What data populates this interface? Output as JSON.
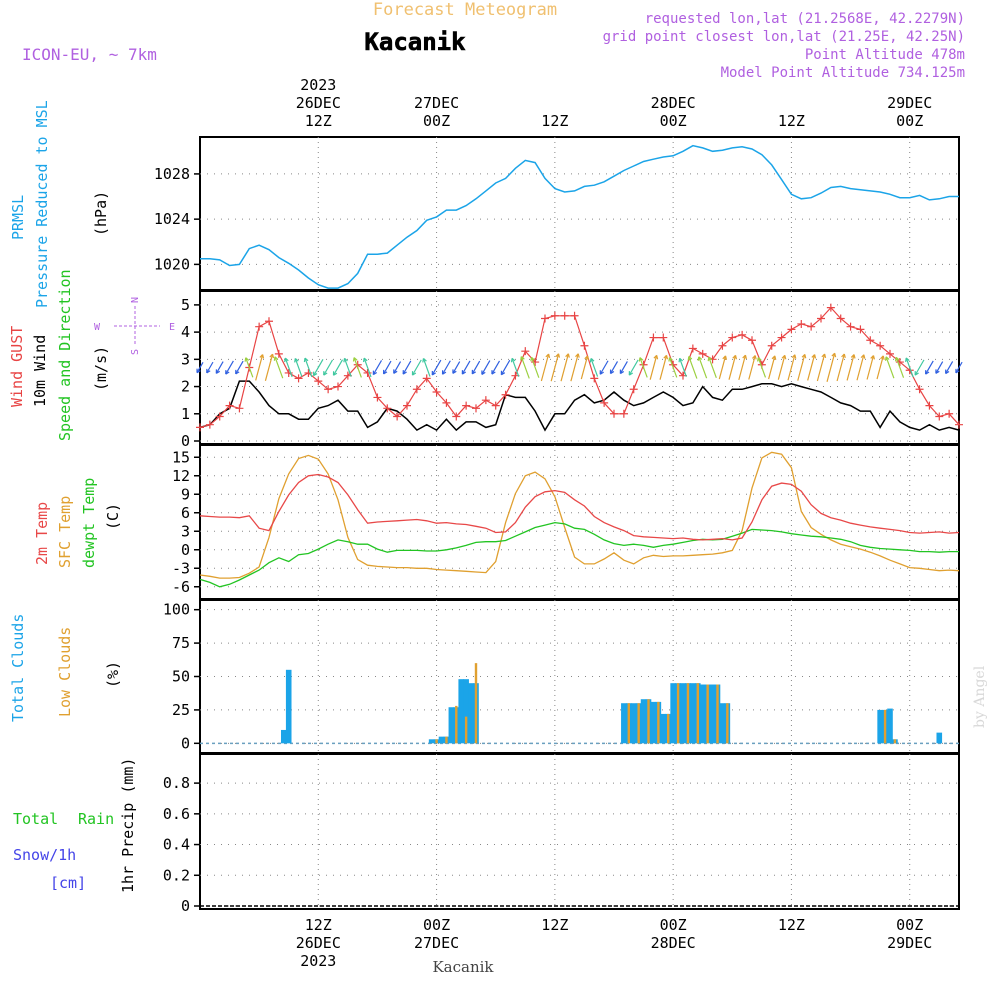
{
  "header": {
    "subtitle": "Forecast Meteogram",
    "station": "Kacanik",
    "model": "ICON-EU, ~ 7km",
    "requested": "requested lon,lat (21.2568E, 42.2279N)",
    "gridpoint": "grid point closest lon,lat (21.25E, 42.25N)",
    "altitude": "Point Altitude 478m",
    "model_altitude": "Model Point Altitude 734.125m",
    "footer_station": "Kacanik",
    "watermark": "by Angel"
  },
  "time_axis": {
    "year": "2023",
    "ticks": [
      {
        "time": "12Z",
        "date": "26DEC",
        "year": "2023",
        "hour": 12
      },
      {
        "time": "00Z",
        "date": "27DEC",
        "year": "",
        "hour": 24
      },
      {
        "time": "12Z",
        "date": "",
        "year": "",
        "hour": 36
      },
      {
        "time": "00Z",
        "date": "28DEC",
        "year": "",
        "hour": 48
      },
      {
        "time": "12Z",
        "date": "",
        "year": "",
        "hour": 60
      },
      {
        "time": "00Z",
        "date": "29DEC",
        "year": "",
        "hour": 72
      }
    ]
  },
  "panels": {
    "pressure": {
      "label1": "PRMSL",
      "label2": "Pressure Reduced to MSL",
      "unit": "(hPa)"
    },
    "wind": {
      "label_gust": "Wind GUST",
      "label_wind": "10m Wind",
      "label_speed": "Speed and Direction",
      "unit": "(m/s)",
      "compass_n": "N",
      "compass_s": "S",
      "compass_w": "W",
      "compass_e": "E"
    },
    "temp": {
      "label_t2m": "2m Temp",
      "label_sfc": "SFC Temp",
      "label_dew": "dewpt Temp",
      "unit": "(C)"
    },
    "clouds": {
      "label_total": "Total Clouds",
      "label_low": "Low Clouds",
      "unit": "(%)"
    },
    "precip": {
      "label_total": "Total",
      "label_rain": "Rain",
      "label_snow": "Snow/1h",
      "label_cm": "[cm]",
      "unit": "1hr Precip (mm)"
    }
  },
  "colors": {
    "pressure": "#1ba4e8",
    "gust": "#e84444",
    "wind": "#000000",
    "t2m": "#e84848",
    "sfc": "#e0a030",
    "dew": "#22c422",
    "total_clouds": "#1ba4e8",
    "low_clouds": "#e0a030",
    "purple": "#b060e0",
    "title_orange": "#f0c070",
    "rain_green": "#22c422",
    "snow_blue": "#4444e8"
  },
  "chart_data": [
    {
      "type": "line",
      "name": "pressure",
      "x_hours": [
        0,
        1,
        2,
        3,
        4,
        5,
        6,
        7,
        8,
        9,
        10,
        11,
        12,
        13,
        14,
        15,
        16,
        17,
        18,
        19,
        20,
        21,
        22,
        23,
        24,
        25,
        26,
        27,
        28,
        29,
        30,
        31,
        32,
        33,
        34,
        35,
        36,
        37,
        38,
        39,
        40,
        41,
        42,
        43,
        44,
        45,
        46,
        47,
        48,
        49,
        50,
        51,
        52,
        53,
        54,
        55,
        56,
        57,
        58,
        59,
        60,
        61,
        62,
        63,
        64,
        65,
        66,
        67,
        68,
        69,
        70,
        71,
        72,
        73,
        74,
        75,
        76,
        77
      ],
      "values": [
        1020.5,
        1020.5,
        1020.4,
        1019.9,
        1020,
        1021.4,
        1021.7,
        1021.3,
        1020.6,
        1020.1,
        1019.5,
        1018.8,
        1018.2,
        1017.9,
        1017.9,
        1018.3,
        1019.2,
        1020.9,
        1020.9,
        1021,
        1021.7,
        1022.4,
        1023,
        1023.9,
        1024.2,
        1024.8,
        1024.8,
        1025.2,
        1025.8,
        1026.5,
        1027.2,
        1027.6,
        1028.5,
        1029.2,
        1029,
        1027.6,
        1026.7,
        1026.4,
        1026.5,
        1026.9,
        1027,
        1027.3,
        1027.8,
        1028.3,
        1028.7,
        1029.1,
        1029.3,
        1029.5,
        1029.6,
        1030,
        1030.5,
        1030.3,
        1030,
        1030.1,
        1030.3,
        1030.4,
        1030.2,
        1029.7,
        1028.8,
        1027.5,
        1026.2,
        1025.8,
        1025.9,
        1026.3,
        1026.8,
        1026.9,
        1026.7,
        1026.6,
        1026.5,
        1026.4,
        1026.2,
        1025.9,
        1025.9,
        1026.1,
        1025.7,
        1025.8,
        1026,
        1026
      ],
      "ylim": [
        1018,
        1031
      ],
      "yticks": [
        1020,
        1024,
        1028
      ]
    },
    {
      "type": "line",
      "name": "wind",
      "x_hours": [
        0,
        1,
        2,
        3,
        4,
        5,
        6,
        7,
        8,
        9,
        10,
        11,
        12,
        13,
        14,
        15,
        16,
        17,
        18,
        19,
        20,
        21,
        22,
        23,
        24,
        25,
        26,
        27,
        28,
        29,
        30,
        31,
        32,
        33,
        34,
        35,
        36,
        37,
        38,
        39,
        40,
        41,
        42,
        43,
        44,
        45,
        46,
        47,
        48,
        49,
        50,
        51,
        52,
        53,
        54,
        55,
        56,
        57,
        58,
        59,
        60,
        61,
        62,
        63,
        64,
        65,
        66,
        67,
        68,
        69,
        70,
        71,
        72,
        73,
        74,
        75,
        76,
        77
      ],
      "gust": [
        0.5,
        0.6,
        0.9,
        1.3,
        1.2,
        2.7,
        4.2,
        4.4,
        3.2,
        2.5,
        2.3,
        2.5,
        2.2,
        1.9,
        2,
        2.4,
        2.8,
        2.5,
        1.6,
        1.2,
        0.9,
        1.3,
        1.9,
        2.3,
        1.8,
        1.4,
        0.9,
        1.3,
        1.2,
        1.5,
        1.3,
        1.7,
        2.4,
        3.3,
        2.9,
        4.5,
        4.6,
        4.6,
        4.6,
        3.5,
        2.3,
        1.4,
        1,
        1,
        1.9,
        2.8,
        3.8,
        3.8,
        2.8,
        2.4,
        3.4,
        3.2,
        3,
        3.5,
        3.8,
        3.9,
        3.7,
        2.8,
        3.5,
        3.8,
        4.1,
        4.3,
        4.2,
        4.5,
        4.9,
        4.5,
        4.2,
        4.1,
        3.7,
        3.5,
        3.2,
        2.9,
        2.6,
        1.9,
        1.3,
        0.9,
        1,
        0.6
      ],
      "wind": [
        0.5,
        0.6,
        1,
        1.2,
        2.2,
        2.2,
        1.8,
        1.3,
        1,
        1,
        0.8,
        0.8,
        1.2,
        1.3,
        1.5,
        1.1,
        1.1,
        0.5,
        0.7,
        1.2,
        1.1,
        0.8,
        0.4,
        0.6,
        0.4,
        0.8,
        0.4,
        0.7,
        0.7,
        0.5,
        0.6,
        1.7,
        1.6,
        1.6,
        1.1,
        0.4,
        1,
        1,
        1.5,
        1.7,
        1.4,
        1.5,
        1.8,
        1.5,
        1.3,
        1.4,
        1.6,
        1.8,
        1.6,
        1.3,
        1.4,
        2,
        1.6,
        1.5,
        1.9,
        1.9,
        2,
        2.1,
        2.1,
        2,
        2.1,
        2,
        1.9,
        1.8,
        1.6,
        1.4,
        1.3,
        1.1,
        1.1,
        0.5,
        1.1,
        0.7,
        0.5,
        0.4,
        0.6,
        0.4,
        0.5,
        0.4
      ],
      "ylim": [
        0,
        5.4
      ],
      "yticks": [
        0,
        1,
        2,
        3,
        4,
        5
      ]
    },
    {
      "type": "line",
      "name": "temperature",
      "x_hours": [
        0,
        1,
        2,
        3,
        4,
        5,
        6,
        7,
        8,
        9,
        10,
        11,
        12,
        13,
        14,
        15,
        16,
        17,
        18,
        19,
        20,
        21,
        22,
        23,
        24,
        25,
        26,
        27,
        28,
        29,
        30,
        31,
        32,
        33,
        34,
        35,
        36,
        37,
        38,
        39,
        40,
        41,
        42,
        43,
        44,
        45,
        46,
        47,
        48,
        49,
        50,
        51,
        52,
        53,
        54,
        55,
        56,
        57,
        58,
        59,
        60,
        61,
        62,
        63,
        64,
        65,
        66,
        67,
        68,
        69,
        70,
        71,
        72,
        73,
        74,
        75,
        76,
        77
      ],
      "t2m": [
        5.5,
        5.4,
        5.3,
        5.3,
        5.2,
        5.5,
        3.5,
        3.1,
        6.2,
        8.9,
        10.9,
        12,
        12.2,
        11.8,
        10.9,
        8.9,
        6.5,
        4.3,
        4.5,
        4.6,
        4.7,
        4.8,
        4.9,
        4.7,
        4.3,
        4.4,
        4.2,
        4.1,
        3.8,
        3.5,
        2.8,
        2.9,
        4.4,
        6.9,
        8.6,
        9.4,
        9.6,
        9.3,
        8.1,
        7.1,
        5.4,
        4.4,
        3.7,
        3.1,
        2.3,
        2.1,
        2,
        1.9,
        1.8,
        1.9,
        1.7,
        1.6,
        1.7,
        1.8,
        1.6,
        1.9,
        4.5,
        8.1,
        10.3,
        10.8,
        10.6,
        9.5,
        7.3,
        5.9,
        5.2,
        4.8,
        4.3,
        4,
        3.7,
        3.5,
        3.3,
        3.1,
        2.8,
        2.7,
        2.8,
        2.9,
        2.7,
        2.8
      ],
      "sfc": [
        -4.1,
        -4.3,
        -4.6,
        -4.6,
        -4.5,
        -3.8,
        -2.8,
        2,
        8.3,
        12.3,
        14.8,
        15.3,
        14.7,
        12.3,
        8.1,
        2,
        -1.6,
        -2.5,
        -2.7,
        -2.8,
        -2.9,
        -2.9,
        -3,
        -3,
        -3.2,
        -3.3,
        -3.4,
        -3.5,
        -3.6,
        -3.7,
        -1.9,
        4.4,
        9.1,
        12,
        12.6,
        11.5,
        8.6,
        3.6,
        -1.2,
        -2.3,
        -2.3,
        -1.5,
        -0.5,
        -1.7,
        -2.3,
        -1.3,
        -0.9,
        -1.1,
        -1,
        -1,
        -0.9,
        -0.8,
        -0.7,
        -0.5,
        -0.1,
        3.1,
        10,
        14.9,
        15.8,
        15.5,
        13.3,
        6.2,
        3.6,
        2.5,
        1.6,
        0.9,
        0.5,
        0.1,
        -0.4,
        -1,
        -1.7,
        -2.3,
        -2.9,
        -3,
        -3.2,
        -3.4,
        -3.3,
        -3.4
      ],
      "dew": [
        -4.8,
        -5.3,
        -6,
        -5.6,
        -4.9,
        -4.1,
        -3.3,
        -2.1,
        -1.3,
        -1.9,
        -0.8,
        -0.6,
        0.1,
        0.9,
        1.6,
        1.3,
        0.9,
        0.9,
        0.1,
        -0.4,
        -0.1,
        -0.1,
        -0.1,
        -0.2,
        -0.2,
        0,
        0.3,
        0.7,
        1.2,
        1.3,
        1.3,
        1.5,
        2.2,
        2.9,
        3.6,
        4,
        4.4,
        4.2,
        3.5,
        3.3,
        2.5,
        1.6,
        1,
        0.7,
        0.9,
        0.7,
        0.4,
        0.7,
        0.9,
        1.2,
        1.5,
        1.7,
        1.6,
        1.7,
        2.2,
        2.7,
        3.3,
        3.2,
        3.1,
        2.9,
        2.6,
        2.4,
        2.2,
        2.1,
        1.9,
        1.7,
        1.3,
        0.7,
        0.4,
        0.2,
        0.1,
        0,
        -0.1,
        -0.3,
        -0.3,
        -0.4,
        -0.3,
        -0.3
      ],
      "ylim": [
        -7.5,
        16.5
      ],
      "yticks": [
        -6,
        -3,
        0,
        3,
        6,
        9,
        12,
        15
      ]
    },
    {
      "type": "bar",
      "name": "clouds",
      "x_hours": [
        8.5,
        9,
        23.5,
        24,
        24.5,
        25,
        25.5,
        26,
        26.5,
        27,
        27.5,
        28,
        43,
        43.5,
        44,
        44.5,
        45,
        45.5,
        46,
        46.5,
        47,
        47.5,
        48,
        48.5,
        49,
        49.5,
        50,
        50.5,
        51,
        51.5,
        52,
        52.5,
        53,
        53.5,
        69,
        69.5,
        70,
        70.5,
        75
      ],
      "total": [
        10,
        55,
        3,
        3,
        5,
        5,
        27,
        27,
        48,
        48,
        45,
        45,
        30,
        30,
        30,
        30,
        33,
        33,
        31,
        31,
        22,
        22,
        45,
        45,
        45,
        45,
        45,
        45,
        44,
        44,
        44,
        44,
        30,
        30,
        25,
        25,
        26,
        3,
        8
      ],
      "low": [
        0,
        0,
        0,
        3,
        0,
        5,
        0,
        28,
        0,
        20,
        0,
        60,
        0,
        30,
        0,
        30,
        0,
        33,
        0,
        31,
        0,
        22,
        0,
        45,
        0,
        45,
        0,
        45,
        0,
        44,
        0,
        44,
        0,
        30,
        0,
        25,
        0,
        3,
        0
      ],
      "ylim": [
        -5,
        105
      ],
      "yticks": [
        0,
        25,
        50,
        75,
        100
      ]
    },
    {
      "type": "bar",
      "name": "precip",
      "x_hours": [],
      "values": [],
      "ylim": [
        0,
        0.97
      ],
      "yticks": [
        0,
        0.2,
        0.4,
        0.6,
        0.8
      ]
    }
  ]
}
